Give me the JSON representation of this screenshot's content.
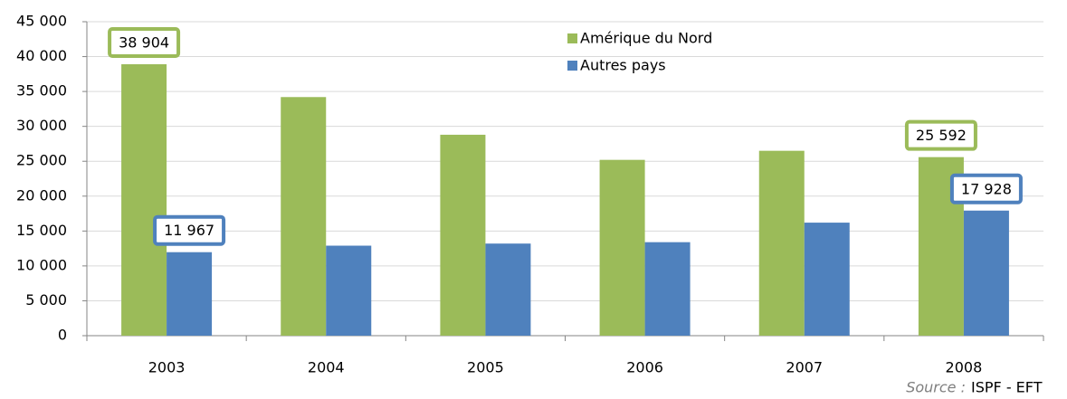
{
  "chart_data": {
    "type": "bar",
    "categories": [
      "2003",
      "2004",
      "2005",
      "2006",
      "2007",
      "2008"
    ],
    "series": [
      {
        "name": "Amérique du Nord",
        "color": "#9bbb59",
        "values": [
          38904,
          34200,
          28800,
          25200,
          26500,
          25592
        ],
        "value_labels": [
          "38 904",
          null,
          null,
          null,
          null,
          "25 592"
        ]
      },
      {
        "name": "Autres pays",
        "color": "#4f81bd",
        "values": [
          11967,
          12900,
          13200,
          13400,
          16200,
          17928
        ],
        "value_labels": [
          "11 967",
          null,
          null,
          null,
          null,
          "17 928"
        ]
      }
    ],
    "ylim": [
      0,
      45000
    ],
    "yticks": [
      {
        "value": 0,
        "label": "0"
      },
      {
        "value": 5000,
        "label": "5 000"
      },
      {
        "value": 10000,
        "label": "10 000"
      },
      {
        "value": 15000,
        "label": "15 000"
      },
      {
        "value": 20000,
        "label": "20 000"
      },
      {
        "value": 25000,
        "label": "25 000"
      },
      {
        "value": 30000,
        "label": "30 000"
      },
      {
        "value": 35000,
        "label": "35 000"
      },
      {
        "value": 40000,
        "label": "40 000"
      },
      {
        "value": 45000,
        "label": "45 000"
      }
    ],
    "grid": true,
    "source_label": "Source :",
    "source": "ISPF - EFT"
  }
}
